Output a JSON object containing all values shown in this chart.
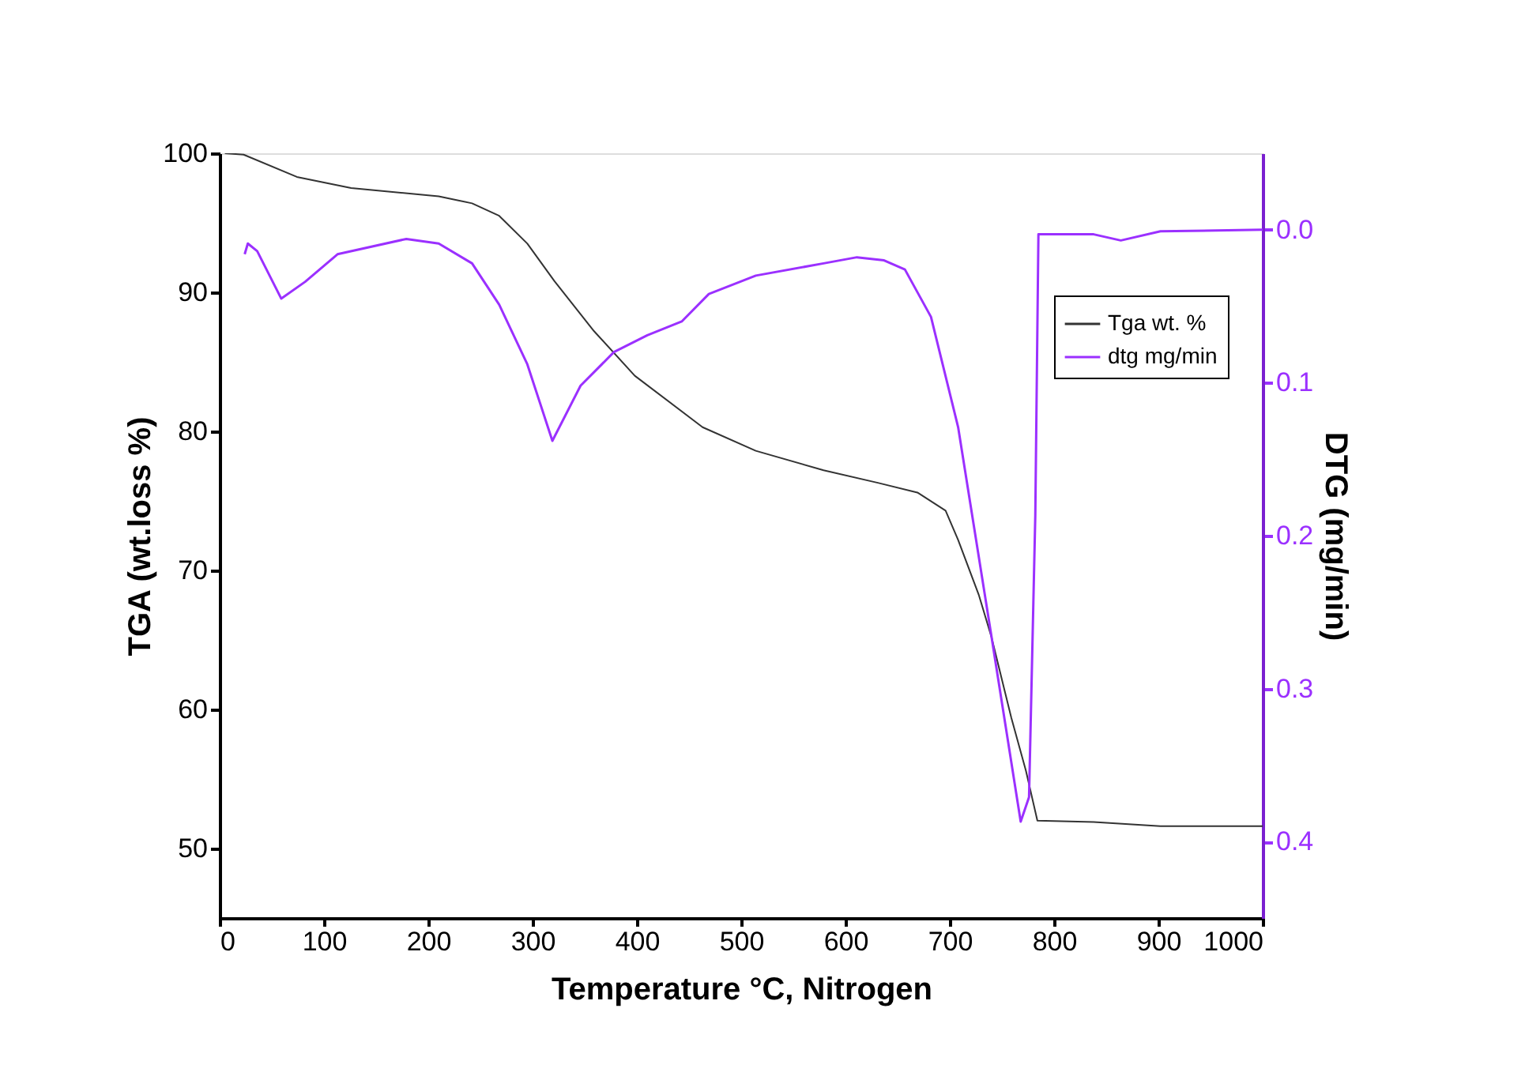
{
  "chart_data": {
    "type": "line",
    "xlabel": "Temperature °C, Nitrogen",
    "ylabel": "TGA (wt.loss %)",
    "y2label": "DTG (mg/min)",
    "xlim": [
      0,
      1000
    ],
    "xticks": [
      0,
      100,
      200,
      300,
      400,
      500,
      600,
      700,
      800,
      900,
      1000
    ],
    "ylim": [
      45,
      100
    ],
    "yticks": [
      50,
      60,
      70,
      80,
      90,
      100
    ],
    "y2lim": [
      0.45,
      -0.05
    ],
    "y2ticks": [
      {
        "value": 0,
        "label": "0.0"
      },
      0.1,
      0.2,
      0.3,
      0.4
    ],
    "legend": "right",
    "grid": false,
    "line_style": "solid",
    "marker": "none",
    "series": [
      {
        "name": "Tga wt. %",
        "color": "#333333",
        "x": [
          5,
          23,
          74,
          126,
          210,
          242,
          268,
          295,
          321,
          359,
          398,
          463,
          514,
          579,
          631,
          669,
          696,
          708,
          728,
          740,
          759,
          773,
          784,
          838,
          902,
          1000
        ],
        "values": [
          100,
          99.9,
          98.3,
          97.5,
          96.9,
          96.4,
          95.5,
          93.5,
          90.8,
          87.2,
          84.0,
          80.3,
          78.6,
          77.2,
          76.3,
          75.6,
          74.3,
          72.2,
          68.2,
          65.2,
          59.4,
          55.6,
          52.0,
          51.9,
          51.6,
          51.6
        ]
      },
      {
        "name": "dtg mg/min",
        "color": "#9b30ff",
        "axis": "y2",
        "x": [
          24,
          27,
          36,
          59,
          82,
          113,
          179,
          210,
          242,
          268,
          295,
          319,
          346,
          378,
          410,
          443,
          469,
          514,
          579,
          611,
          637,
          657,
          682,
          708,
          740,
          768,
          776,
          782,
          785,
          838,
          864,
          902,
          1000
        ],
        "values": [
          0.016,
          0.009,
          0.014,
          0.045,
          0.034,
          0.016,
          0.006,
          0.009,
          0.022,
          0.049,
          0.088,
          0.138,
          0.102,
          0.08,
          0.069,
          0.06,
          0.042,
          0.03,
          0.022,
          0.018,
          0.02,
          0.026,
          0.057,
          0.129,
          0.266,
          0.387,
          0.371,
          0.187,
          0.003,
          0.003,
          0.007,
          0.001,
          0.0
        ]
      }
    ]
  }
}
